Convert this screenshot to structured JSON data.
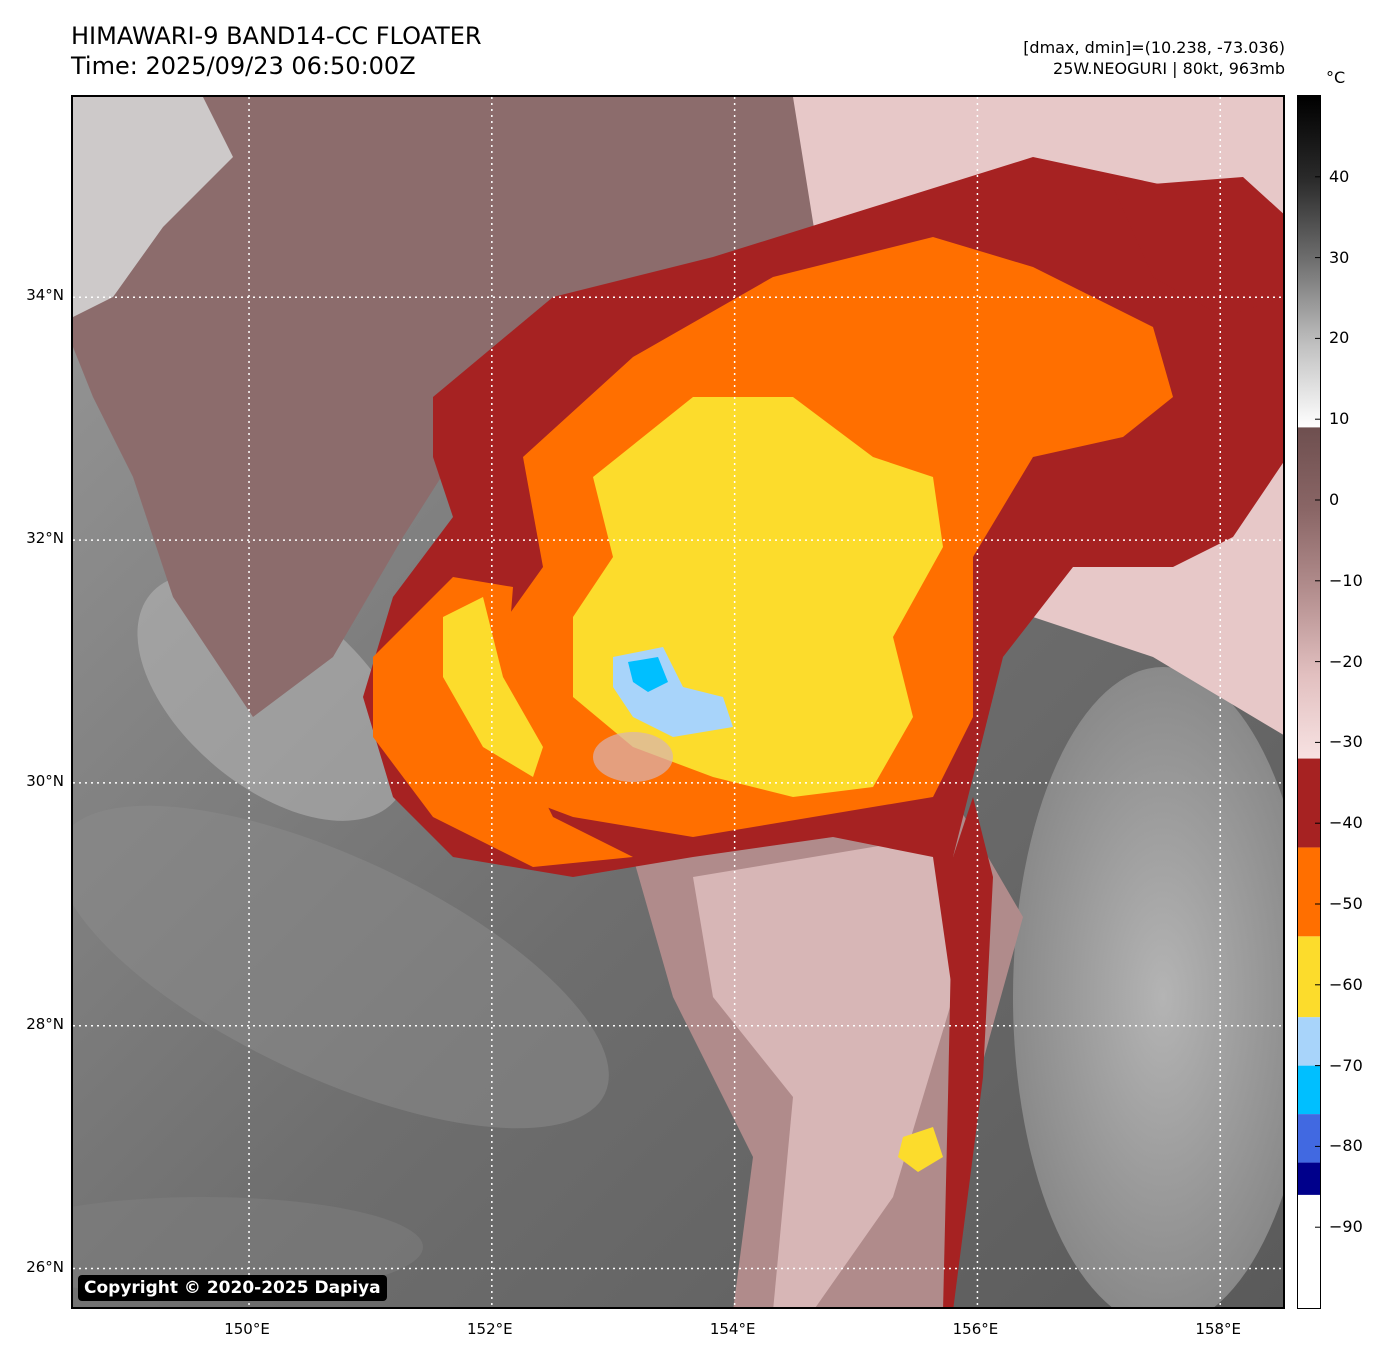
{
  "header": {
    "title": "HIMAWARI-9 BAND14-CC FLOATER",
    "time": "Time: 2025/09/23 06:50:00Z",
    "dmax_dmin": "[dmax, dmin]=(10.238, -73.036)",
    "storm": "25W.NEOGURI | 80kt, 963mb"
  },
  "map": {
    "copyright": "Copyright © 2020-2025 Dapiya",
    "lon_range": [
      148.55,
      158.55
    ],
    "lat_range": [
      25.65,
      35.65
    ],
    "lat_ticks": [
      {
        "value": 34,
        "label": "34°N"
      },
      {
        "value": 32,
        "label": "32°N"
      },
      {
        "value": 30,
        "label": "30°N"
      },
      {
        "value": 28,
        "label": "28°N"
      },
      {
        "value": 26,
        "label": "26°N"
      }
    ],
    "lon_ticks": [
      {
        "value": 150,
        "label": "150°E"
      },
      {
        "value": 152,
        "label": "152°E"
      },
      {
        "value": 154,
        "label": "154°E"
      },
      {
        "value": 156,
        "label": "156°E"
      },
      {
        "value": 158,
        "label": "158°E"
      }
    ],
    "storm_center": {
      "lon": 153.3,
      "lat": 30.6
    },
    "colors": {
      "warm_surface": "#6a6a6a",
      "cirrus_mauve": "#8c6c6c",
      "pink": "#e7c8c8",
      "dark_red": "#a62222",
      "orange": "#ff6f00",
      "yellow": "#fcdc2c",
      "light_blue": "#a8d4fa",
      "cyan": "#00bfff"
    }
  },
  "colorbar": {
    "unit": "°C",
    "range": [
      -100,
      50
    ],
    "ticks": [
      40,
      30,
      20,
      10,
      0,
      -10,
      -20,
      -30,
      -40,
      -50,
      -60,
      -70,
      -80,
      -90
    ],
    "tick_labels": [
      "40",
      "30",
      "20",
      "10",
      "0",
      "−10",
      "−20",
      "−30",
      "−40",
      "−50",
      "−60",
      "−70",
      "−80",
      "−90"
    ],
    "segments": [
      {
        "from": -100,
        "to": -86,
        "color": "#ffffff"
      },
      {
        "from": -86,
        "to": -82,
        "color": "#00008b"
      },
      {
        "from": -82,
        "to": -76,
        "color": "#4169e1"
      },
      {
        "from": -76,
        "to": -70,
        "color": "#00bfff"
      },
      {
        "from": -70,
        "to": -64,
        "color": "#a8d4fa"
      },
      {
        "from": -64,
        "to": -54,
        "color": "#fcdc2c"
      },
      {
        "from": -54,
        "to": -43,
        "color": "#ff6f00"
      },
      {
        "from": -43,
        "to": -32,
        "color": "#a62222"
      }
    ],
    "gradients": [
      {
        "from": -32,
        "to": 9,
        "stops": [
          "#f7e2e2",
          "#e2c0c0",
          "#b48f8f",
          "#8a6666",
          "#6e4f4f"
        ]
      },
      {
        "from": 9,
        "to": 50,
        "stops": [
          "#ffffff",
          "#c0c0c0",
          "#707070",
          "#2a2a2a",
          "#000000"
        ]
      }
    ]
  }
}
